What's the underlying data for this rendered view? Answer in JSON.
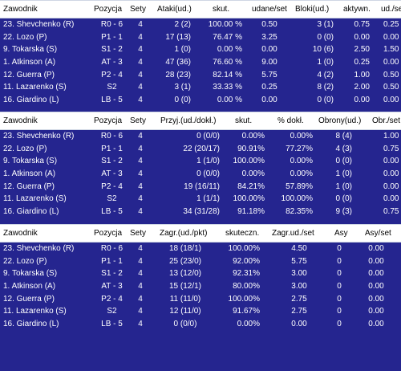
{
  "tables": [
    {
      "headers": [
        "Zawodnik",
        "Pozycja",
        "Sety",
        "Ataki(ud.)",
        "skut.",
        "udane/set",
        "Bloki(ud.)",
        "aktywn.",
        "ud./set"
      ],
      "rows": [
        [
          "23. Shevchenko (R)",
          "R0 - 6",
          "4",
          "2 (2)",
          "100.00 %",
          "0.50",
          "3 (1)",
          "0.75",
          "0.25"
        ],
        [
          "22. Lozo (P)",
          "P1 - 1",
          "4",
          "17 (13)",
          "76.47 %",
          "3.25",
          "0 (0)",
          "0.00",
          "0.00"
        ],
        [
          "9. Tokarska (S)",
          "S1 - 2",
          "4",
          "1 (0)",
          "0.00 %",
          "0.00",
          "10 (6)",
          "2.50",
          "1.50"
        ],
        [
          "1. Atkinson (A)",
          "AT - 3",
          "4",
          "47 (36)",
          "76.60 %",
          "9.00",
          "1 (0)",
          "0.25",
          "0.00"
        ],
        [
          "12. Guerra (P)",
          "P2 - 4",
          "4",
          "28 (23)",
          "82.14 %",
          "5.75",
          "4 (2)",
          "1.00",
          "0.50"
        ],
        [
          "11. Lazarenko (S)",
          "S2",
          "4",
          "3 (1)",
          "33.33 %",
          "0.25",
          "8 (2)",
          "2.00",
          "0.50"
        ],
        [
          "16. Giardino (L)",
          "LB - 5",
          "4",
          "0 (0)",
          "0.00 %",
          "0.00",
          "0 (0)",
          "0.00",
          "0.00"
        ]
      ]
    },
    {
      "headers": [
        "Zawodnik",
        "Pozycja",
        "Sety",
        "Przyj.(ud./dokł.)",
        "skut.",
        "% dokł.",
        "Obrony(ud.)",
        "Obr./set"
      ],
      "rows": [
        [
          "23. Shevchenko (R)",
          "R0 - 6",
          "4",
          "0 (0/0)",
          "0.00%",
          "0.00%",
          "8 (4)",
          "1.00"
        ],
        [
          "22. Lozo (P)",
          "P1 - 1",
          "4",
          "22 (20/17)",
          "90.91%",
          "77.27%",
          "4 (3)",
          "0.75"
        ],
        [
          "9. Tokarska (S)",
          "S1 - 2",
          "4",
          "1 (1/0)",
          "100.00%",
          "0.00%",
          "0 (0)",
          "0.00"
        ],
        [
          "1. Atkinson (A)",
          "AT - 3",
          "4",
          "0 (0/0)",
          "0.00%",
          "0.00%",
          "1 (0)",
          "0.00"
        ],
        [
          "12. Guerra (P)",
          "P2 - 4",
          "4",
          "19 (16/11)",
          "84.21%",
          "57.89%",
          "1 (0)",
          "0.00"
        ],
        [
          "11. Lazarenko (S)",
          "S2",
          "4",
          "1 (1/1)",
          "100.00%",
          "100.00%",
          "0 (0)",
          "0.00"
        ],
        [
          "16. Giardino (L)",
          "LB - 5",
          "4",
          "34 (31/28)",
          "91.18%",
          "82.35%",
          "9 (3)",
          "0.75"
        ]
      ]
    },
    {
      "headers": [
        "Zawodnik",
        "Pozycja",
        "Sety",
        "Zagr.(ud./pkt)",
        "skuteczn.",
        "Zagr.ud./set",
        "Asy",
        "Asy/set"
      ],
      "rows": [
        [
          "23. Shevchenko (R)",
          "R0 - 6",
          "4",
          "18 (18/1)",
          "100.00%",
          "4.50",
          "0",
          "0.00"
        ],
        [
          "22. Lozo (P)",
          "P1 - 1",
          "4",
          "25 (23/0)",
          "92.00%",
          "5.75",
          "0",
          "0.00"
        ],
        [
          "9. Tokarska (S)",
          "S1 - 2",
          "4",
          "13 (12/0)",
          "92.31%",
          "3.00",
          "0",
          "0.00"
        ],
        [
          "1. Atkinson (A)",
          "AT - 3",
          "4",
          "15 (12/1)",
          "80.00%",
          "3.00",
          "0",
          "0.00"
        ],
        [
          "12. Guerra (P)",
          "P2 - 4",
          "4",
          "11 (11/0)",
          "100.00%",
          "2.75",
          "0",
          "0.00"
        ],
        [
          "11. Lazarenko (S)",
          "S2",
          "4",
          "12 (11/0)",
          "91.67%",
          "2.75",
          "0",
          "0.00"
        ],
        [
          "16. Giardino (L)",
          "LB - 5",
          "4",
          "0 (0/0)",
          "0.00%",
          "0.00",
          "0",
          "0.00"
        ]
      ]
    }
  ],
  "colors": {
    "background": "#25258f",
    "header_background": "#ffffff",
    "header_text": "#000000",
    "row_text": "#ffffff"
  }
}
